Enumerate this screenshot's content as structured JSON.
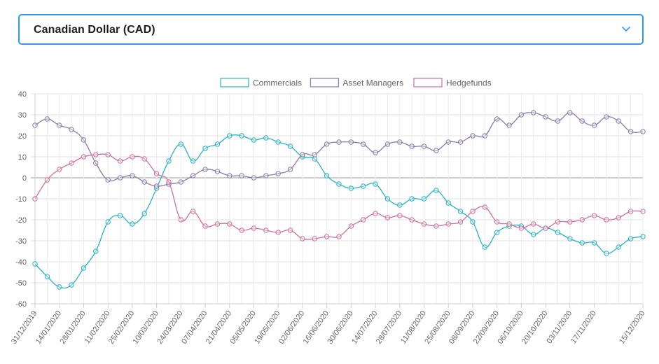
{
  "currency_select": {
    "value": "Canadian Dollar (CAD)",
    "icon": "chevron-down-icon",
    "border_color": "#2f9bea"
  },
  "chart_data": {
    "type": "line",
    "legend_position": "top-center",
    "grid": true,
    "ylim": [
      -60,
      40
    ],
    "yticks": [
      40,
      30,
      20,
      10,
      0,
      -10,
      -20,
      -30,
      -40,
      -50,
      -60
    ],
    "xtick_labels": [
      "31/12/2019",
      "14/01/2020",
      "28/01/2020",
      "11/02/2020",
      "25/02/2020",
      "10/03/2020",
      "24/03/2020",
      "07/04/2020",
      "21/04/2020",
      "05/05/2020",
      "19/05/2020",
      "02/06/2020",
      "16/06/2020",
      "30/06/2020",
      "14/07/2020",
      "28/07/2020",
      "11/08/2020",
      "25/08/2020",
      "08/09/2020",
      "22/09/2020",
      "06/10/2020",
      "20/10/2020",
      "03/11/2020",
      "17/11/2020",
      "15/12/2020"
    ],
    "x": [
      "31/12/2019",
      "07/01/2020",
      "14/01/2020",
      "21/01/2020",
      "28/01/2020",
      "04/02/2020",
      "11/02/2020",
      "18/02/2020",
      "25/02/2020",
      "03/03/2020",
      "10/03/2020",
      "17/03/2020",
      "24/03/2020",
      "31/03/2020",
      "07/04/2020",
      "14/04/2020",
      "21/04/2020",
      "28/04/2020",
      "05/05/2020",
      "12/05/2020",
      "19/05/2020",
      "26/05/2020",
      "02/06/2020",
      "09/06/2020",
      "16/06/2020",
      "23/06/2020",
      "30/06/2020",
      "07/07/2020",
      "14/07/2020",
      "21/07/2020",
      "28/07/2020",
      "04/08/2020",
      "11/08/2020",
      "18/08/2020",
      "25/08/2020",
      "01/09/2020",
      "08/09/2020",
      "15/09/2020",
      "22/09/2020",
      "29/09/2020",
      "06/10/2020",
      "13/10/2020",
      "20/10/2020",
      "27/10/2020",
      "03/11/2020",
      "10/11/2020",
      "17/11/2020",
      "24/11/2020",
      "01/12/2020",
      "08/12/2020",
      "15/12/2020"
    ],
    "series": [
      {
        "name": "Commercials",
        "color": "#26b4c6",
        "values": [
          -41,
          -47,
          -52,
          -51,
          -43,
          -35,
          -21,
          -18,
          -22,
          -17,
          -5,
          8,
          16,
          8,
          14,
          16,
          20,
          20,
          18,
          19,
          17,
          15,
          10,
          9,
          1,
          -3,
          -5,
          -4,
          -3,
          -10,
          -13,
          -10,
          -10,
          -6,
          -12,
          -16,
          -21,
          -33,
          -26,
          -23,
          -23,
          -27,
          -24,
          -26,
          -29,
          -31,
          -31,
          -36,
          -33,
          -29,
          -28
        ]
      },
      {
        "name": "Asset Managers",
        "color": "#8a7aa8",
        "values": [
          25,
          28,
          25,
          23,
          18,
          7,
          -1,
          0,
          1,
          -2,
          -4,
          -3,
          -2,
          1,
          4,
          3,
          1,
          1,
          0,
          1,
          2,
          4,
          11,
          11,
          16,
          17,
          17,
          16,
          12,
          16,
          17,
          15,
          15,
          13,
          17,
          17,
          20,
          20,
          28,
          25,
          30,
          31,
          29,
          27,
          31,
          27,
          25,
          29,
          27,
          22,
          22
        ]
      },
      {
        "name": "Hedgefunds",
        "color": "#cf6f9f",
        "values": [
          -10,
          -1,
          4,
          7,
          10,
          11,
          11,
          8,
          10,
          9,
          2,
          -2,
          -20,
          -16,
          -23,
          -22,
          -22,
          -25,
          -24,
          -25,
          -26,
          -25,
          -29,
          -29,
          -28,
          -28,
          -23,
          -20,
          -17,
          -19,
          -18,
          -20,
          -22,
          -23,
          -22,
          -21,
          -16,
          -14,
          -21,
          -22,
          -24,
          -22,
          -24,
          -21,
          -21,
          -20,
          -18,
          -20,
          -19,
          -16,
          -16
        ]
      }
    ]
  }
}
